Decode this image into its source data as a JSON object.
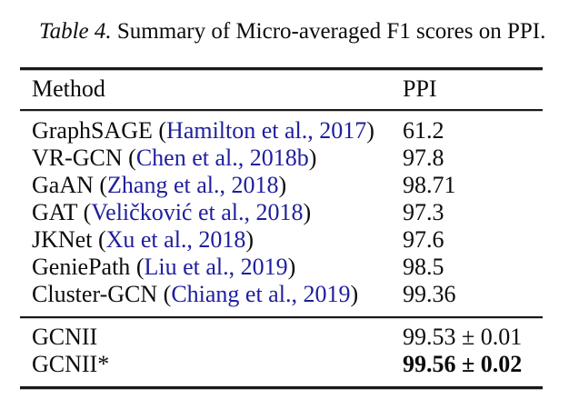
{
  "caption": {
    "label": "Table 4.",
    "text": "Summary of Micro-averaged F1 scores on PPI."
  },
  "table": {
    "headers": {
      "method": "Method",
      "ppi": "PPI"
    },
    "rows": [
      {
        "name": "GraphSAGE",
        "citation": "Hamilton et al., 2017",
        "value": "61.2",
        "bold": false
      },
      {
        "name": "VR-GCN",
        "citation": "Chen et al., 2018b",
        "value": "97.8",
        "bold": false
      },
      {
        "name": "GaAN",
        "citation": "Zhang et al., 2018",
        "value": "98.71",
        "bold": false
      },
      {
        "name": "GAT",
        "citation": "Veličković et al., 2018",
        "value": "97.3",
        "bold": false
      },
      {
        "name": "JKNet",
        "citation": "Xu et al., 2018",
        "value": "97.6",
        "bold": false
      },
      {
        "name": "GeniePath",
        "citation": "Liu et al., 2019",
        "value": "98.5",
        "bold": false
      },
      {
        "name": "Cluster-GCN",
        "citation": "Chiang et al., 2019",
        "value": "99.36",
        "bold": false
      }
    ],
    "footer_rows": [
      {
        "name": "GCNII",
        "citation": null,
        "value": "99.53 ± 0.01",
        "bold": false
      },
      {
        "name": "GCNII*",
        "citation": null,
        "value": "99.56 ± 0.02",
        "bold": true
      }
    ]
  },
  "colors": {
    "background": "#ffffff",
    "text": "#0c0c0c",
    "citation_blue": "#1e1e9e",
    "rule": "#191919"
  }
}
